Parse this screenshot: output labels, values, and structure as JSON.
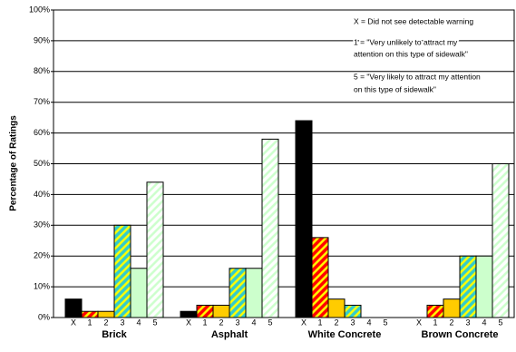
{
  "chart_data": {
    "type": "bar",
    "ylabel": "Percentage of Ratings",
    "annotations": [
      "X = Did not see detectable warning",
      "1 = \"Very unlikely to attract my",
      "attention on this type of sidewalk\"",
      "5 = \"Very likely to attract my attention",
      "on this type of sidewalk\""
    ],
    "categories": [
      "Brick",
      "Asphalt",
      "White Concrete",
      "Brown Concrete"
    ],
    "series": [
      {
        "name": "X",
        "color": "#000000",
        "values": [
          6,
          2,
          64,
          0
        ]
      },
      {
        "name": "1",
        "color": "#ff0000",
        "hatch": "#ffff00",
        "values": [
          2,
          4,
          26,
          4
        ]
      },
      {
        "name": "2",
        "color": "#ffcc00",
        "values": [
          2,
          4,
          6,
          6
        ]
      },
      {
        "name": "3",
        "color": "#33cccc",
        "hatch": "#ffff00",
        "values": [
          30,
          16,
          4,
          20
        ]
      },
      {
        "name": "4",
        "color": "#ccffcc",
        "values": [
          16,
          16,
          0,
          20
        ]
      },
      {
        "name": "5",
        "color": "#ffffff",
        "hatch": "#ccffcc",
        "values": [
          44,
          58,
          0,
          50
        ]
      }
    ],
    "ylim": [
      0,
      100
    ],
    "yticks": [
      {
        "value": 0,
        "label": "0%"
      },
      {
        "value": 10,
        "label": "10%"
      },
      {
        "value": 20,
        "label": "20%"
      },
      {
        "value": 30,
        "label": "30%"
      },
      {
        "value": 40,
        "label": "40%"
      },
      {
        "value": 50,
        "label": "50%"
      },
      {
        "value": 60,
        "label": "60%"
      },
      {
        "value": 70,
        "label": "70%"
      },
      {
        "value": 80,
        "label": "80%"
      },
      {
        "value": 90,
        "label": "90%"
      },
      {
        "value": 100,
        "label": "100%"
      }
    ],
    "grid": true
  }
}
